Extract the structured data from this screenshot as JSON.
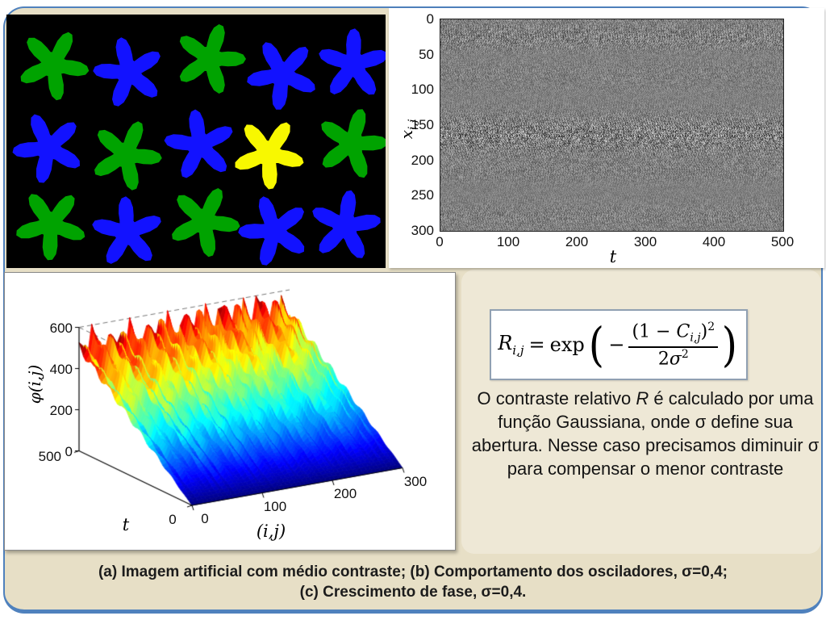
{
  "slide": {
    "background_color": "#e7dfc6",
    "frame_color": "#4f81bd",
    "text_panel_color": "#eee8d6"
  },
  "artificial_image": {
    "background": "#000000",
    "cells": [
      {
        "shape": "star",
        "color_name": "green",
        "color": "#00a300"
      },
      {
        "shape": "star",
        "color_name": "blue",
        "color": "#1212ff"
      },
      {
        "shape": "star",
        "color_name": "green",
        "color": "#00a300"
      },
      {
        "shape": "star",
        "color_name": "blue",
        "color": "#1212ff"
      },
      {
        "shape": "star",
        "color_name": "blue",
        "color": "#1212ff"
      },
      {
        "shape": "star",
        "color_name": "blue",
        "color": "#1212ff"
      },
      {
        "shape": "star",
        "color_name": "green",
        "color": "#00a300"
      },
      {
        "shape": "star",
        "color_name": "blue",
        "color": "#1212ff"
      },
      {
        "shape": "star",
        "color_name": "yellow",
        "color": "#f8f800"
      },
      {
        "shape": "star",
        "color_name": "green",
        "color": "#00a300"
      },
      {
        "shape": "star",
        "color_name": "green",
        "color": "#00a300"
      },
      {
        "shape": "star",
        "color_name": "blue",
        "color": "#1212ff"
      },
      {
        "shape": "star",
        "color_name": "green",
        "color": "#00a300"
      },
      {
        "shape": "star",
        "color_name": "blue",
        "color": "#1212ff"
      },
      {
        "shape": "star",
        "color_name": "blue",
        "color": "#1212ff"
      }
    ]
  },
  "chart_data": [
    {
      "id": "oscillators-raster",
      "panel_label": "(b)",
      "type": "heatmap",
      "xlabel": "t",
      "ylabel": "x",
      "ylabel_sub": "i,j",
      "x_ticks": [
        "0",
        "100",
        "200",
        "300",
        "400",
        "500"
      ],
      "y_ticks": [
        "0",
        "50",
        "100",
        "150",
        "200",
        "250",
        "300"
      ],
      "xlim": [
        0,
        500
      ],
      "ylim": [
        0,
        300
      ],
      "y_inverted": true,
      "texture": "dense grayscale oscillation raster, high-contrast horizontal band near x_i,j = 150-190",
      "band_center": 168,
      "band_halfwidth": 20
    },
    {
      "id": "phase-growth-surface",
      "panel_label": "(c)",
      "type": "surface",
      "zlabel": "φ(i,j)",
      "ylabel": "t",
      "xlabel": "(i,j)",
      "z_ticks": [
        "0",
        "200",
        "400",
        "600"
      ],
      "t_ticks": [
        "500",
        "0"
      ],
      "ij_ticks": [
        "0",
        "100",
        "200",
        "300"
      ],
      "zlim": [
        0,
        600
      ],
      "tlim": [
        0,
        500
      ],
      "ijlim": [
        0,
        300
      ],
      "colormap": "jet",
      "shape": "plane rising linearly with t from phi=0 at t=0 to phi~600 at t=500, jagged red ridge at back"
    }
  ],
  "formula": {
    "R": "R",
    "R_sub": "i,j",
    "eq": "=",
    "func": "exp",
    "open_paren": "(",
    "close_paren": ")",
    "minus": "−",
    "num_pre": "(1 − ",
    "num_C": "C",
    "num_C_sub": "i,j",
    "num_close": ")",
    "num_sup": "2",
    "den_coeff": "2",
    "den_sigma": "σ",
    "den_sup": "2"
  },
  "description": {
    "part1": "O contraste relativo ",
    "part2": "R",
    "part3": " é calculado por uma função Gaussiana, onde ",
    "part4": "σ",
    "part5": " define sua abertura. Nesse caso precisamos diminuir ",
    "part6": "σ",
    "part7": " para compensar o menor contraste"
  },
  "caption": {
    "line1": "(a) Imagem artificial com médio contraste; (b) Comportamento dos osciladores, σ=0,4;",
    "line2": "(c) Crescimento de fase, σ=0,4."
  }
}
